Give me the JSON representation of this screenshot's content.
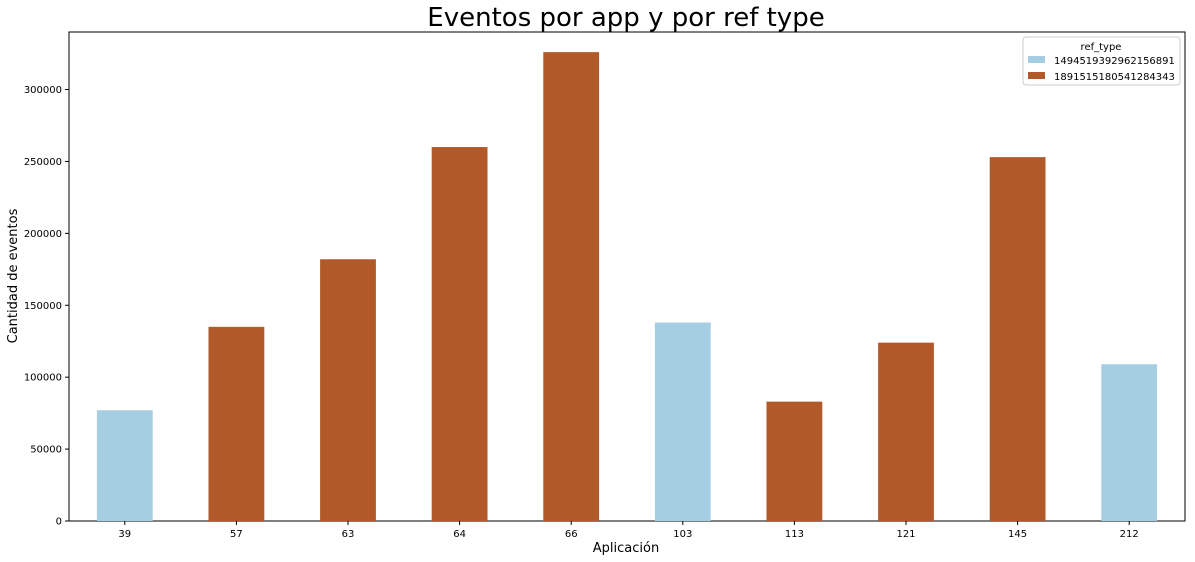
{
  "chart_data": {
    "type": "bar",
    "title": "Eventos por app y por ref type",
    "xlabel": "Aplicación",
    "ylabel": "Cantidad de eventos",
    "ylim": [
      0,
      340000
    ],
    "yticks": [
      0,
      50000,
      100000,
      150000,
      200000,
      250000,
      300000
    ],
    "categories": [
      "39",
      "57",
      "63",
      "64",
      "66",
      "103",
      "113",
      "121",
      "145",
      "212"
    ],
    "series": [
      {
        "name": "1494519392962156891",
        "color": "#a6cee3",
        "values": [
          77000,
          null,
          null,
          null,
          null,
          138000,
          null,
          null,
          null,
          109000
        ]
      },
      {
        "name": "1891515180541284343",
        "color": "#b15928",
        "values": [
          null,
          135000,
          182000,
          260000,
          326000,
          null,
          83000,
          124000,
          253000,
          null
        ]
      }
    ],
    "legend": {
      "title": "ref_type",
      "position": "top-right"
    },
    "grid": false
  }
}
